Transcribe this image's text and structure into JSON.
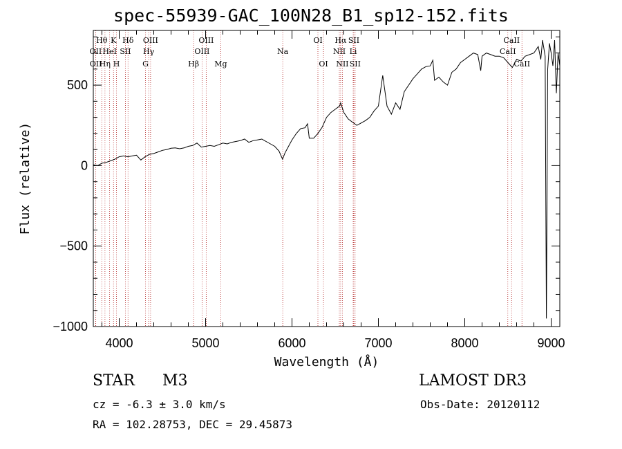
{
  "header": {
    "title": "spec-55939-GAC_100N28_B1_sp12-152.fits"
  },
  "info": {
    "object_class": "STAR",
    "subclass": "M3",
    "survey": "LAMOST DR3",
    "cz": "cz = -6.3 ± 3.0 km/s",
    "obs_date": "Obs-Date: 20120112",
    "coords": "RA = 102.28753, DEC =  29.45873"
  },
  "colors": {
    "line": "#000000",
    "marker": "#b22222",
    "background": "#ffffff"
  },
  "chart_data": {
    "type": "line",
    "title": "spec-55939-GAC_100N28_B1_sp12-152.fits",
    "xlabel": "Wavelength (Å)",
    "ylabel": "Flux (relative)",
    "xlim": [
      3700,
      9100
    ],
    "ylim": [
      -1000,
      840
    ],
    "xticks": [
      4000,
      5000,
      6000,
      7000,
      8000,
      9000
    ],
    "yticks": [
      -1000,
      -500,
      0,
      500
    ],
    "ytick_labels": [
      "−1000",
      "−500",
      "0",
      "500"
    ],
    "grid": false,
    "series": [
      {
        "name": "flux",
        "points": [
          [
            3700,
            5
          ],
          [
            3750,
            0
          ],
          [
            3800,
            15
          ],
          [
            3850,
            20
          ],
          [
            3900,
            30
          ],
          [
            3950,
            40
          ],
          [
            4000,
            55
          ],
          [
            4050,
            60
          ],
          [
            4100,
            55
          ],
          [
            4150,
            60
          ],
          [
            4200,
            65
          ],
          [
            4250,
            35
          ],
          [
            4300,
            55
          ],
          [
            4350,
            70
          ],
          [
            4400,
            75
          ],
          [
            4450,
            85
          ],
          [
            4500,
            95
          ],
          [
            4550,
            100
          ],
          [
            4600,
            108
          ],
          [
            4650,
            110
          ],
          [
            4700,
            105
          ],
          [
            4750,
            110
          ],
          [
            4800,
            120
          ],
          [
            4850,
            125
          ],
          [
            4900,
            140
          ],
          [
            4950,
            115
          ],
          [
            5000,
            120
          ],
          [
            5050,
            125
          ],
          [
            5100,
            120
          ],
          [
            5150,
            130
          ],
          [
            5200,
            140
          ],
          [
            5250,
            135
          ],
          [
            5300,
            145
          ],
          [
            5350,
            150
          ],
          [
            5400,
            155
          ],
          [
            5450,
            165
          ],
          [
            5500,
            145
          ],
          [
            5550,
            155
          ],
          [
            5600,
            160
          ],
          [
            5650,
            165
          ],
          [
            5700,
            150
          ],
          [
            5750,
            135
          ],
          [
            5800,
            120
          ],
          [
            5850,
            90
          ],
          [
            5890,
            40
          ],
          [
            5920,
            80
          ],
          [
            5950,
            110
          ],
          [
            6000,
            160
          ],
          [
            6050,
            200
          ],
          [
            6100,
            230
          ],
          [
            6150,
            235
          ],
          [
            6180,
            260
          ],
          [
            6200,
            170
          ],
          [
            6250,
            170
          ],
          [
            6300,
            200
          ],
          [
            6350,
            240
          ],
          [
            6400,
            300
          ],
          [
            6450,
            330
          ],
          [
            6500,
            350
          ],
          [
            6550,
            370
          ],
          [
            6563,
            390
          ],
          [
            6600,
            330
          ],
          [
            6650,
            290
          ],
          [
            6700,
            270
          ],
          [
            6750,
            250
          ],
          [
            6800,
            265
          ],
          [
            6850,
            280
          ],
          [
            6900,
            300
          ],
          [
            6950,
            340
          ],
          [
            7000,
            370
          ],
          [
            7050,
            560
          ],
          [
            7100,
            370
          ],
          [
            7150,
            320
          ],
          [
            7200,
            390
          ],
          [
            7250,
            350
          ],
          [
            7300,
            460
          ],
          [
            7350,
            500
          ],
          [
            7400,
            540
          ],
          [
            7450,
            570
          ],
          [
            7500,
            600
          ],
          [
            7550,
            615
          ],
          [
            7600,
            620
          ],
          [
            7630,
            655
          ],
          [
            7650,
            530
          ],
          [
            7700,
            550
          ],
          [
            7750,
            520
          ],
          [
            7800,
            500
          ],
          [
            7850,
            580
          ],
          [
            7900,
            600
          ],
          [
            7950,
            640
          ],
          [
            8000,
            660
          ],
          [
            8050,
            680
          ],
          [
            8100,
            700
          ],
          [
            8150,
            690
          ],
          [
            8185,
            590
          ],
          [
            8200,
            680
          ],
          [
            8250,
            700
          ],
          [
            8300,
            690
          ],
          [
            8350,
            680
          ],
          [
            8400,
            680
          ],
          [
            8450,
            670
          ],
          [
            8500,
            640
          ],
          [
            8550,
            610
          ],
          [
            8600,
            660
          ],
          [
            8650,
            650
          ],
          [
            8700,
            680
          ],
          [
            8750,
            690
          ],
          [
            8800,
            700
          ],
          [
            8850,
            740
          ],
          [
            8880,
            660
          ],
          [
            8900,
            780
          ],
          [
            8930,
            680
          ],
          [
            8945,
            -950
          ],
          [
            8960,
            600
          ],
          [
            8980,
            760
          ],
          [
            9000,
            700
          ],
          [
            9020,
            620
          ],
          [
            9040,
            780
          ],
          [
            9060,
            450
          ],
          [
            9080,
            700
          ],
          [
            9100,
            620
          ]
        ]
      }
    ],
    "lines": [
      {
        "name": "Hθ",
        "wave": 3798,
        "row": 1
      },
      {
        "name": "OII",
        "wave": 3727,
        "row": 2
      },
      {
        "name": "OII",
        "wave": 3729,
        "row": 3
      },
      {
        "name": "Hη",
        "wave": 3835,
        "row": 3
      },
      {
        "name": "HeI",
        "wave": 3889,
        "row": 2
      },
      {
        "name": "K",
        "wave": 3934,
        "row": 1
      },
      {
        "name": "H",
        "wave": 3968,
        "row": 3
      },
      {
        "name": "SII",
        "wave": 4072,
        "row": 2
      },
      {
        "name": "Hδ",
        "wave": 4102,
        "row": 1
      },
      {
        "name": "G",
        "wave": 4304,
        "row": 3
      },
      {
        "name": "Hγ",
        "wave": 4341,
        "row": 2
      },
      {
        "name": "OIII",
        "wave": 4363,
        "row": 1
      },
      {
        "name": "Hβ",
        "wave": 4861,
        "row": 3
      },
      {
        "name": "OIII",
        "wave": 4959,
        "row": 2
      },
      {
        "name": "OIII",
        "wave": 5007,
        "row": 1
      },
      {
        "name": "Mg",
        "wave": 5175,
        "row": 3
      },
      {
        "name": "Na",
        "wave": 5893,
        "row": 2
      },
      {
        "name": "OI",
        "wave": 6300,
        "row": 1
      },
      {
        "name": "OI",
        "wave": 6364,
        "row": 3
      },
      {
        "name": "NII",
        "wave": 6548,
        "row": 2
      },
      {
        "name": "Hα",
        "wave": 6563,
        "row": 1
      },
      {
        "name": "NII",
        "wave": 6583,
        "row": 3
      },
      {
        "name": "Li",
        "wave": 6708,
        "row": 2
      },
      {
        "name": "SII",
        "wave": 6716,
        "row": 1
      },
      {
        "name": "SII",
        "wave": 6731,
        "row": 3
      },
      {
        "name": "CaII",
        "wave": 8498,
        "row": 2
      },
      {
        "name": "CaII",
        "wave": 8542,
        "row": 1
      },
      {
        "name": "CaII",
        "wave": 8662,
        "row": 3
      }
    ]
  }
}
